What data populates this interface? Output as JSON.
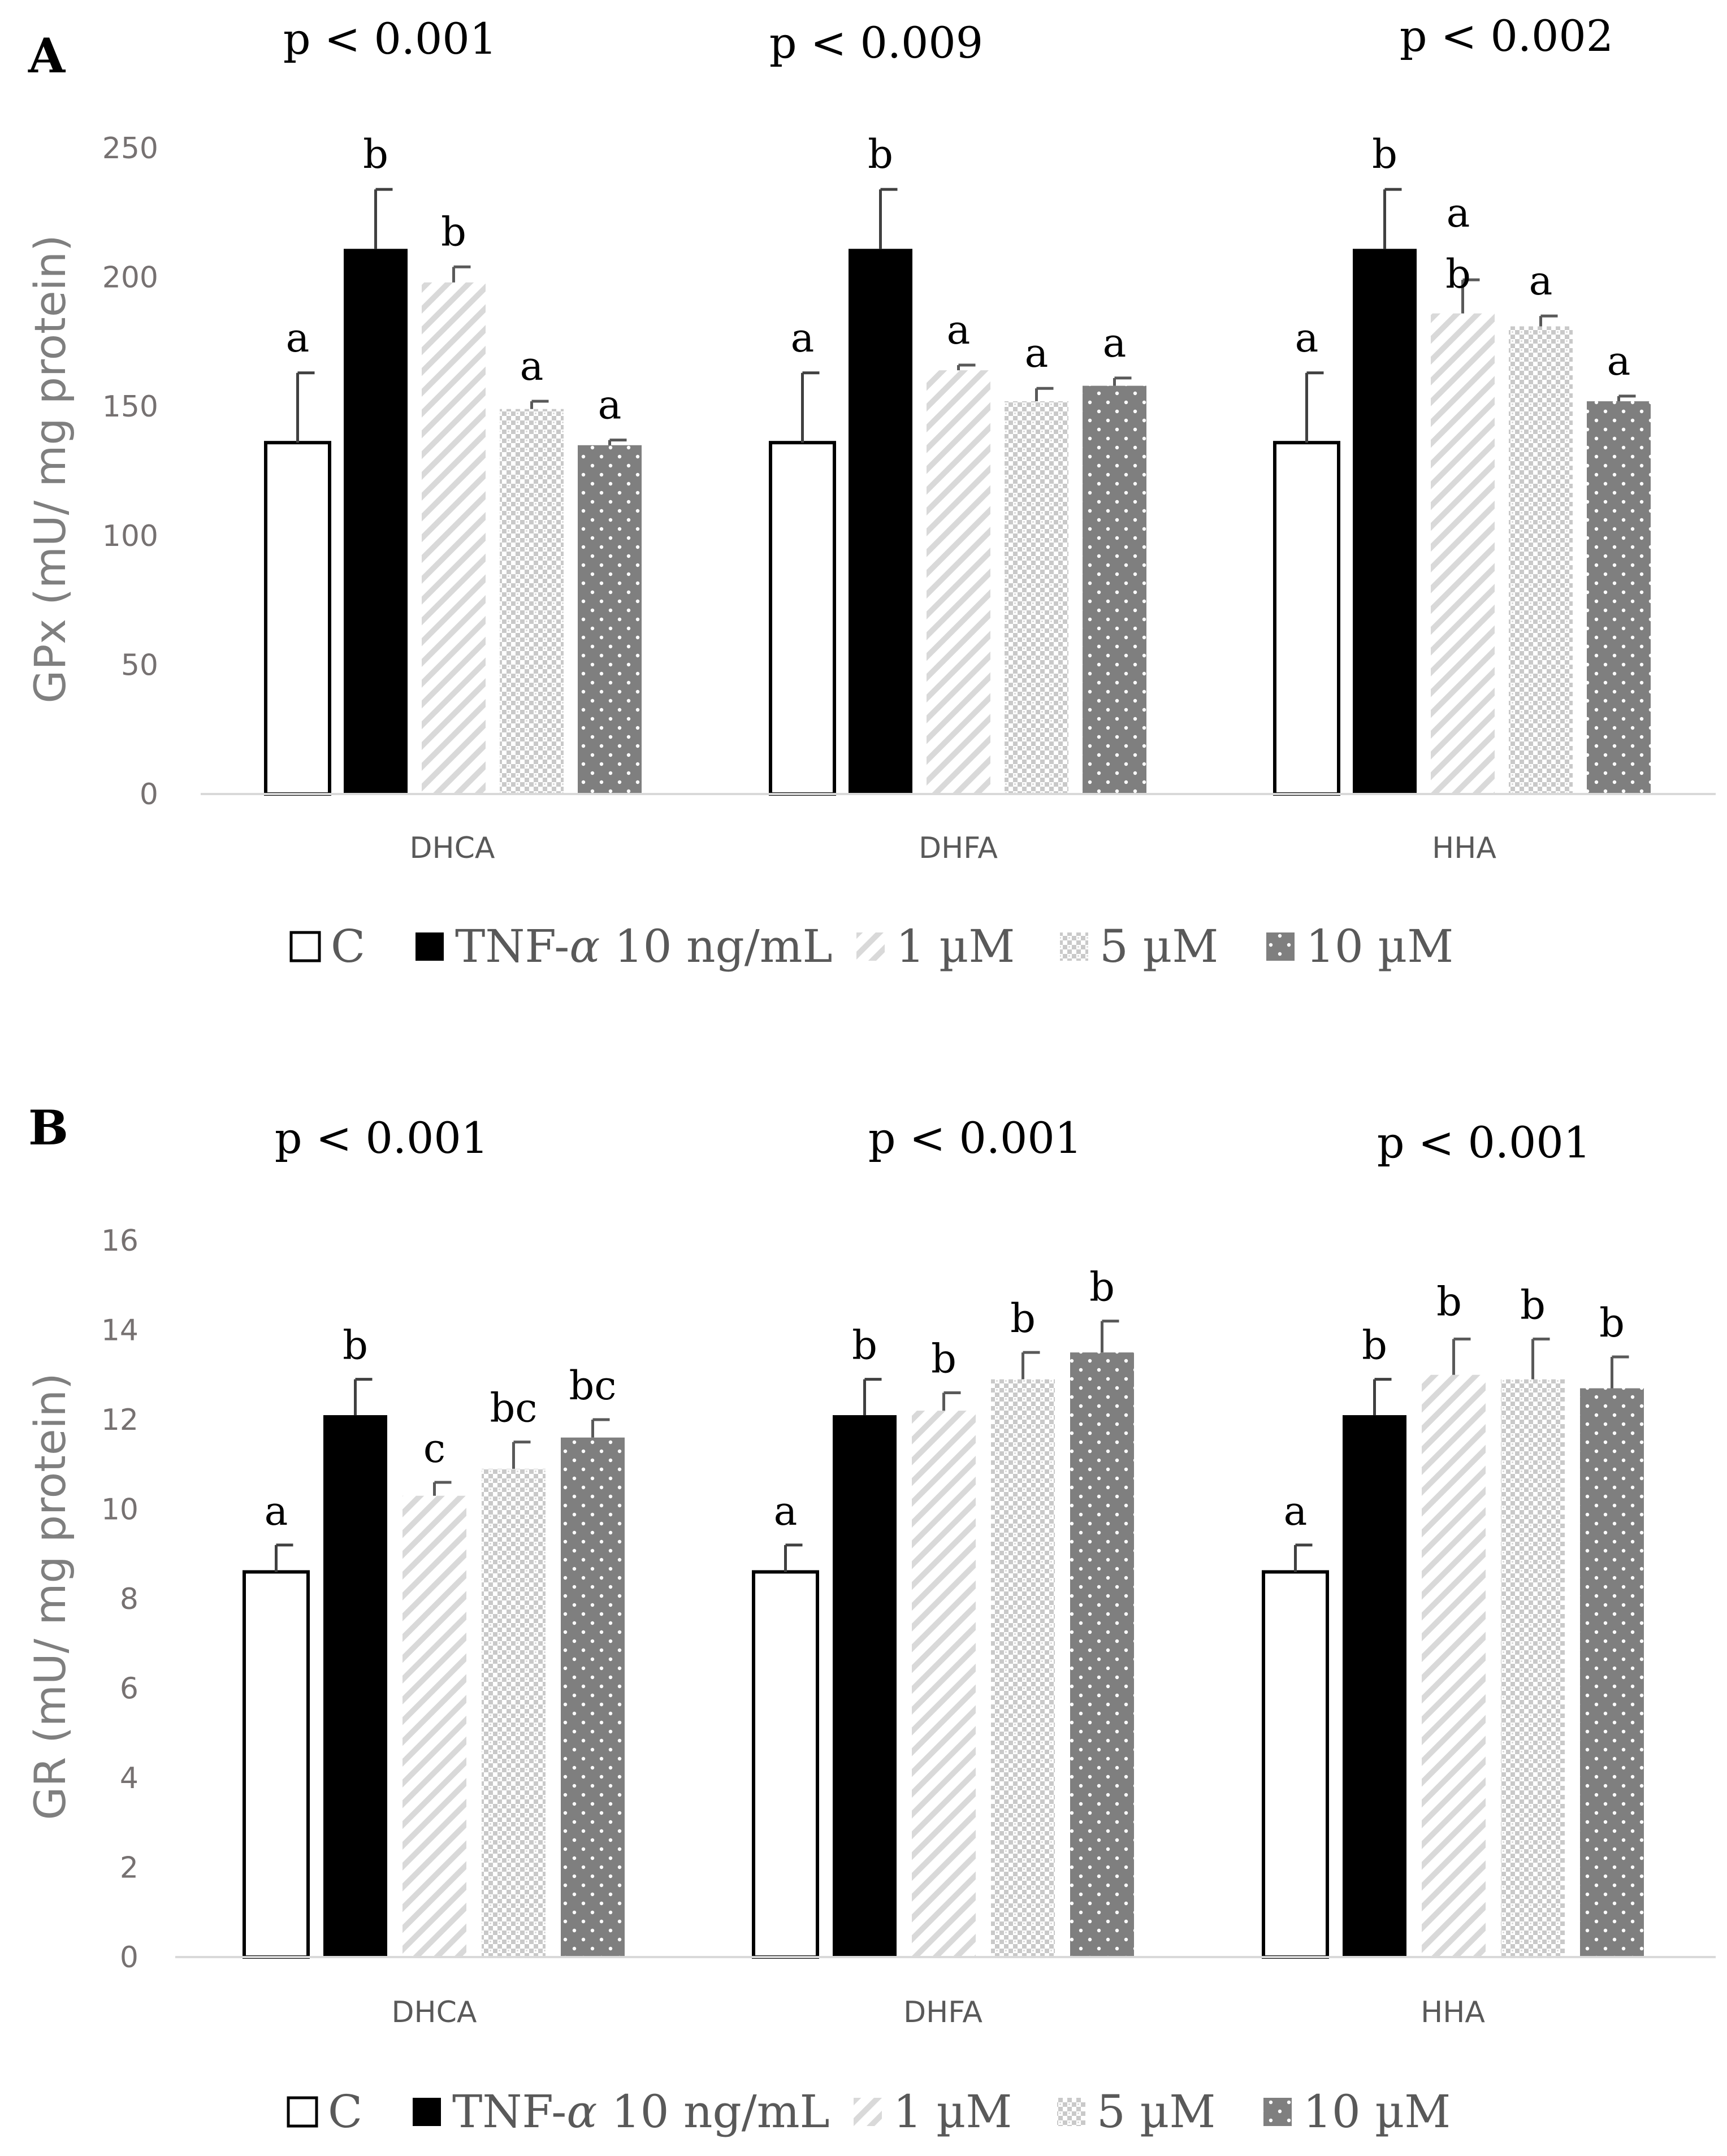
{
  "chart_data": [
    {
      "type": "bar",
      "panel_label": "A",
      "ylabel": "GPx (mU/ mg protein)",
      "ylim": [
        0,
        250
      ],
      "yticks": [
        0,
        50,
        100,
        150,
        200,
        250
      ],
      "categories": [
        "DHCA",
        "DHFA",
        "HHA"
      ],
      "p_values": [
        "p < 0.001",
        "p < 0.009",
        "p < 0.002"
      ],
      "series": [
        {
          "name": "C",
          "values": [
            136,
            136,
            136
          ],
          "errors": [
            27,
            27,
            27
          ],
          "letters": [
            "a",
            "a",
            "a"
          ]
        },
        {
          "name": "TNF-α 10 ng/mL",
          "values": [
            211,
            211,
            211
          ],
          "errors": [
            23,
            23,
            23
          ],
          "letters": [
            "b",
            "b",
            "b"
          ]
        },
        {
          "name": "1 µM",
          "values": [
            198,
            164,
            186
          ],
          "errors": [
            6,
            2,
            13
          ],
          "letters": [
            "b",
            "a",
            "ab"
          ]
        },
        {
          "name": "5 µM",
          "values": [
            149,
            152,
            181
          ],
          "errors": [
            3,
            5,
            4
          ],
          "letters": [
            "a",
            "a",
            "a"
          ]
        },
        {
          "name": "10  µM",
          "values": [
            135,
            158,
            152
          ],
          "errors": [
            2,
            3,
            2
          ],
          "letters": [
            "a",
            "a",
            "a"
          ]
        }
      ],
      "grid": false,
      "legend_position": "bottom"
    },
    {
      "type": "bar",
      "panel_label": "B",
      "ylabel": "GR (mU/ mg protein)",
      "ylim": [
        0,
        16
      ],
      "yticks": [
        0,
        2,
        4,
        6,
        8,
        10,
        12,
        14,
        16
      ],
      "categories": [
        "DHCA",
        "DHFA",
        "HHA"
      ],
      "p_values": [
        "p < 0.001",
        "p < 0.001",
        "p < 0.001"
      ],
      "series": [
        {
          "name": "C",
          "values": [
            8.6,
            8.6,
            8.6
          ],
          "errors": [
            0.6,
            0.6,
            0.6
          ],
          "letters": [
            "a",
            "a",
            "a"
          ]
        },
        {
          "name": "TNF-α 10 ng/mL",
          "values": [
            12.1,
            12.1,
            12.1
          ],
          "errors": [
            0.8,
            0.8,
            0.8
          ],
          "letters": [
            "b",
            "b",
            "b"
          ]
        },
        {
          "name": "1 µM",
          "values": [
            10.3,
            12.2,
            13.0
          ],
          "errors": [
            0.3,
            0.4,
            0.8
          ],
          "letters": [
            "c",
            "b",
            "b"
          ]
        },
        {
          "name": "5 µM",
          "values": [
            10.9,
            12.9,
            12.9
          ],
          "errors": [
            0.6,
            0.6,
            0.9
          ],
          "letters": [
            "bc",
            "b",
            "b"
          ]
        },
        {
          "name": "10  µM",
          "values": [
            11.6,
            13.5,
            12.7
          ],
          "errors": [
            0.4,
            0.7,
            0.7
          ],
          "letters": [
            "bc",
            "b",
            "b"
          ]
        }
      ],
      "grid": false,
      "legend_position": "bottom"
    }
  ],
  "legend": {
    "entries": [
      "C",
      "TNF-",
      "α",
      " 10 ng/mL",
      "1 µM",
      "5 µM",
      "10  µM"
    ]
  },
  "colors": {
    "axis": "#d9d9d9",
    "tick_text": "#767171",
    "control_fill": "#ffffff",
    "tnf_fill": "#000000",
    "hatch": "#d9d9d9",
    "checker": "#c9c9c9",
    "dots_bg": "#7f7f7f"
  }
}
